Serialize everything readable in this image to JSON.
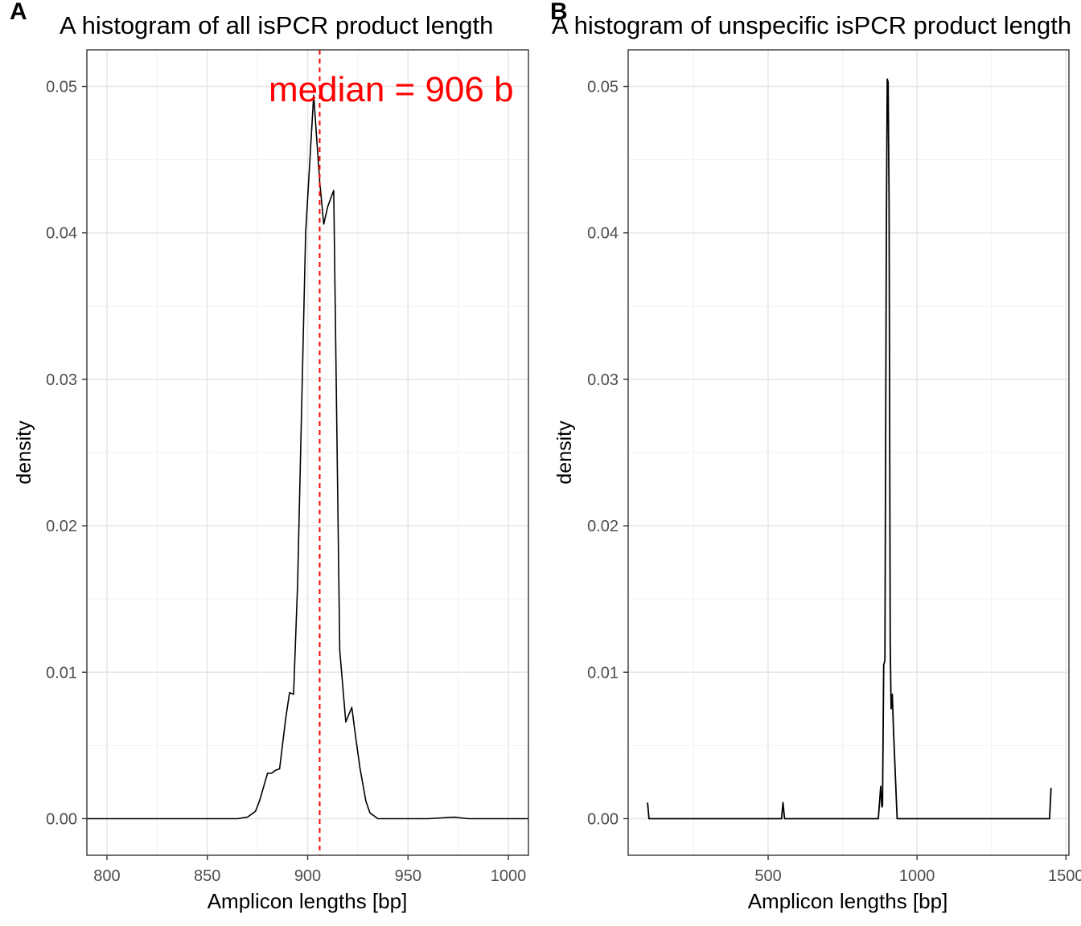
{
  "chart_data": [
    {
      "panel_label": "A",
      "type": "line",
      "title": "A histogram of all isPCR product length",
      "xlabel": "Amplicon lengths [bp]",
      "ylabel": "density",
      "xlim": [
        790,
        1010
      ],
      "ylim": [
        -0.0025,
        0.0525
      ],
      "x_ticks": [
        800,
        850,
        900,
        950,
        1000
      ],
      "x_tick_labels": [
        "800",
        "850",
        "900",
        "950",
        "1000"
      ],
      "y_ticks": [
        0,
        0.01,
        0.02,
        0.03,
        0.04,
        0.05
      ],
      "y_tick_labels": [
        "0.00",
        "0.01",
        "0.02",
        "0.03",
        "0.04",
        "0.05"
      ],
      "grid": true,
      "line_color": "#000000",
      "median_line": {
        "x": 906,
        "color": "#ff0000",
        "style": "dashed"
      },
      "annotation": {
        "text": "median = 906 b",
        "x": 906,
        "y": 0.0495,
        "color": "#ff0000"
      },
      "series": [
        {
          "x": [
            790,
            865,
            870,
            874,
            876,
            880,
            882,
            884,
            886,
            889,
            891,
            893,
            895,
            899,
            903,
            906,
            908,
            910,
            913,
            916,
            919,
            922,
            924,
            926,
            929,
            931,
            935,
            960,
            973,
            980,
            1010
          ],
          "y": [
            0,
            0,
            0.0001,
            0.0005,
            0.0012,
            0.0031,
            0.0031,
            0.0033,
            0.0034,
            0.0068,
            0.0086,
            0.0085,
            0.016,
            0.04,
            0.0494,
            0.0435,
            0.0406,
            0.0418,
            0.0429,
            0.0115,
            0.0066,
            0.0076,
            0.0055,
            0.0035,
            0.0012,
            0.0004,
            0,
            0,
            0.0001,
            0,
            0
          ]
        }
      ]
    },
    {
      "panel_label": "B",
      "type": "line",
      "title": "A histogram of unspecific isPCR product length",
      "xlabel": "Amplicon lengths [bp]",
      "ylabel": "density",
      "xlim": [
        30,
        1510
      ],
      "ylim": [
        -0.0025,
        0.0525
      ],
      "x_ticks": [
        500,
        1000,
        1500
      ],
      "x_tick_labels": [
        "500",
        "1000",
        "1500"
      ],
      "y_ticks": [
        0,
        0.01,
        0.02,
        0.03,
        0.04,
        0.05
      ],
      "y_tick_labels": [
        "0.00",
        "0.01",
        "0.02",
        "0.03",
        "0.04",
        "0.05"
      ],
      "grid": true,
      "line_color": "#000000",
      "series": [
        {
          "x": [
            95,
            100,
            545,
            550,
            555,
            870,
            878,
            882,
            884,
            888,
            892,
            897,
            900,
            903,
            906,
            910,
            913,
            917,
            921,
            933,
            1445,
            1450
          ],
          "y": [
            0.0011,
            0,
            0,
            0.0011,
            0,
            0,
            0.0022,
            0.0008,
            0.0009,
            0.0105,
            0.0108,
            0.04,
            0.0505,
            0.0503,
            0.042,
            0.012,
            0.0075,
            0.0085,
            0.006,
            0,
            0,
            0.0021
          ]
        }
      ]
    }
  ]
}
